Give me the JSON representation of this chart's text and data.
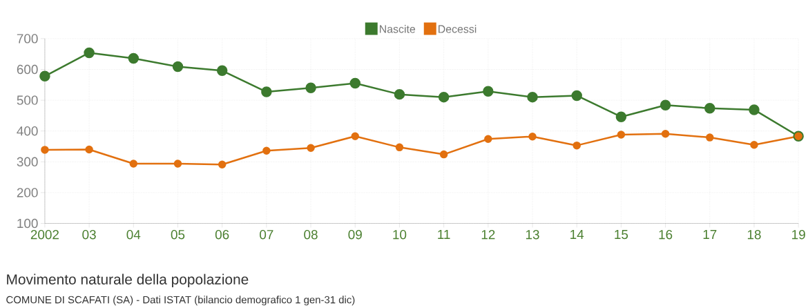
{
  "chart_data": {
    "type": "line",
    "title": "Movimento naturale della popolazione",
    "annotations": [
      "COMUNE DI SCAFATI (SA) - Dati ISTAT (bilancio demografico 1 gen-31 dic)"
    ],
    "categories": [
      "2002",
      "03",
      "04",
      "05",
      "06",
      "07",
      "08",
      "09",
      "10",
      "11",
      "12",
      "13",
      "14",
      "15",
      "16",
      "17",
      "18",
      "19"
    ],
    "series": [
      {
        "name": "Nascite",
        "color": "#3c7a2e",
        "values": [
          578,
          654,
          636,
          609,
          596,
          527,
          540,
          555,
          519,
          510,
          529,
          510,
          515,
          446,
          484,
          474,
          469,
          383
        ]
      },
      {
        "name": "Decessi",
        "color": "#e2700f",
        "values": [
          339,
          340,
          294,
          294,
          291,
          336,
          345,
          383,
          347,
          324,
          374,
          382,
          353,
          388,
          391,
          379,
          355,
          383
        ]
      }
    ],
    "ylim": [
      100,
      700
    ],
    "yticks": [
      100,
      200,
      300,
      400,
      500,
      600,
      700
    ],
    "grid": true,
    "legend": "top",
    "marker": "circle"
  }
}
